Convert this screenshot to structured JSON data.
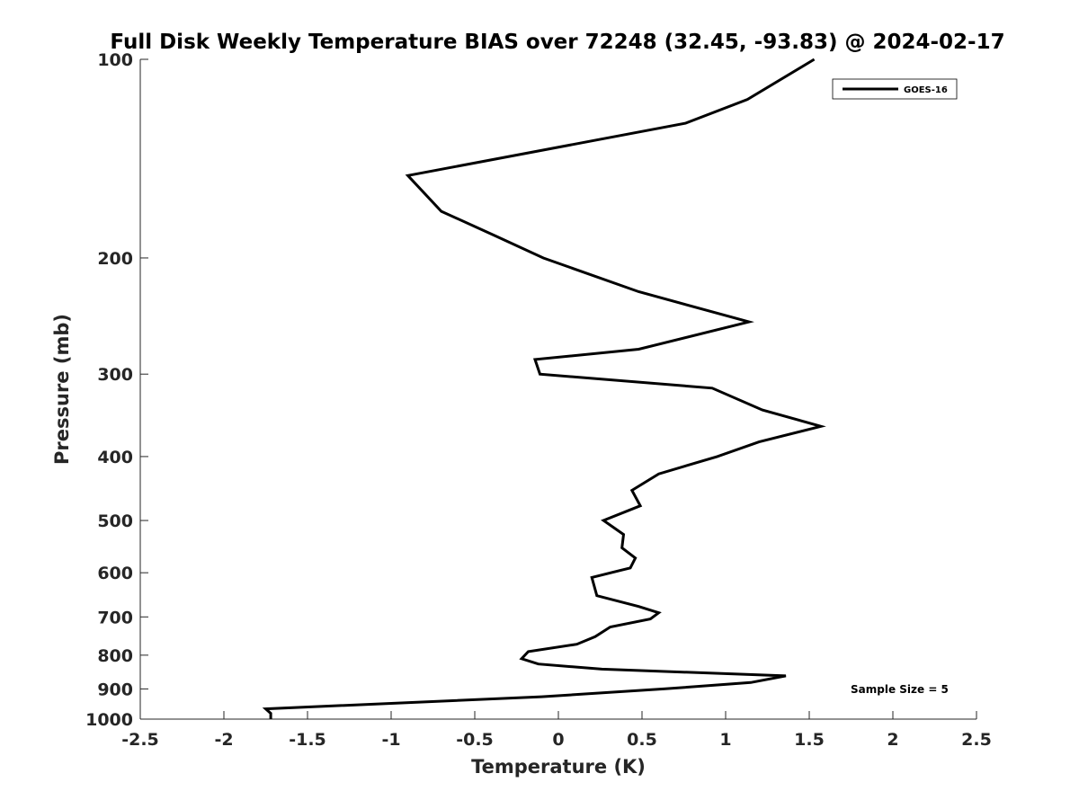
{
  "chart_data": {
    "type": "line",
    "title": "Full Disk Weekly Temperature BIAS over 72248 (32.45, -93.83) @ 2024-02-17",
    "xlabel": "Temperature (K)",
    "ylabel": "Pressure (mb)",
    "xlim": [
      -2.5,
      2.5
    ],
    "ylim": [
      100,
      1000
    ],
    "y_scale": "log",
    "y_reversed": true,
    "grid": false,
    "legend_position": "top-right",
    "x_ticks": [
      -2.5,
      -2,
      -1.5,
      -1,
      -0.5,
      0,
      0.5,
      1,
      1.5,
      2,
      2.5
    ],
    "x_tick_labels": [
      "-2.5",
      "-2",
      "-1.5",
      "-1",
      "-0.5",
      "0",
      "0.5",
      "1",
      "1.5",
      "2",
      "2.5"
    ],
    "y_ticks": [
      100,
      200,
      300,
      400,
      500,
      600,
      700,
      800,
      900,
      1000
    ],
    "y_tick_labels": [
      "100",
      "200",
      "300",
      "400",
      "500",
      "600",
      "700",
      "800",
      "900",
      "1000"
    ],
    "series": [
      {
        "name": "GOES-16",
        "color": "#000000",
        "points": [
          {
            "t": 1.53,
            "p": 100
          },
          {
            "t": 1.13,
            "p": 115
          },
          {
            "t": 0.76,
            "p": 125
          },
          {
            "t": -0.9,
            "p": 150
          },
          {
            "t": -0.7,
            "p": 170
          },
          {
            "t": -0.38,
            "p": 185
          },
          {
            "t": -0.09,
            "p": 200
          },
          {
            "t": 0.48,
            "p": 225
          },
          {
            "t": 1.14,
            "p": 250
          },
          {
            "t": 0.48,
            "p": 275
          },
          {
            "t": -0.14,
            "p": 285
          },
          {
            "t": -0.11,
            "p": 300
          },
          {
            "t": 0.92,
            "p": 315
          },
          {
            "t": 1.22,
            "p": 340
          },
          {
            "t": 1.57,
            "p": 360
          },
          {
            "t": 1.2,
            "p": 380
          },
          {
            "t": 0.95,
            "p": 400
          },
          {
            "t": 0.6,
            "p": 425
          },
          {
            "t": 0.44,
            "p": 450
          },
          {
            "t": 0.49,
            "p": 475
          },
          {
            "t": 0.27,
            "p": 500
          },
          {
            "t": 0.39,
            "p": 525
          },
          {
            "t": 0.38,
            "p": 550
          },
          {
            "t": 0.46,
            "p": 570
          },
          {
            "t": 0.43,
            "p": 590
          },
          {
            "t": 0.2,
            "p": 610
          },
          {
            "t": 0.23,
            "p": 650
          },
          {
            "t": 0.48,
            "p": 675
          },
          {
            "t": 0.6,
            "p": 690
          },
          {
            "t": 0.55,
            "p": 705
          },
          {
            "t": 0.31,
            "p": 725
          },
          {
            "t": 0.22,
            "p": 750
          },
          {
            "t": 0.11,
            "p": 770
          },
          {
            "t": -0.18,
            "p": 790
          },
          {
            "t": -0.22,
            "p": 810
          },
          {
            "t": -0.12,
            "p": 825
          },
          {
            "t": 0.26,
            "p": 840
          },
          {
            "t": 1.36,
            "p": 860
          },
          {
            "t": 1.15,
            "p": 880
          },
          {
            "t": 0.63,
            "p": 900
          },
          {
            "t": -0.1,
            "p": 925
          },
          {
            "t": -1.75,
            "p": 965
          },
          {
            "t": -1.72,
            "p": 980
          },
          {
            "t": -1.72,
            "p": 1000
          }
        ]
      }
    ],
    "annotations": [
      {
        "text": "Sample Size = 5",
        "position": "bottom-right"
      }
    ]
  }
}
